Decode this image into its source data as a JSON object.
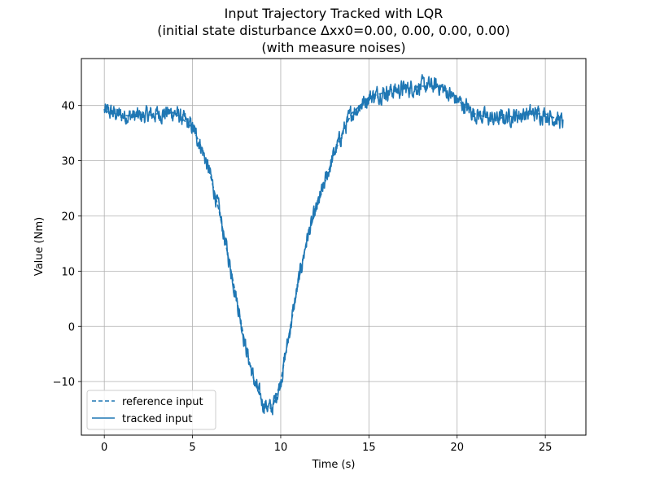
{
  "chart_data": {
    "type": "line",
    "title_lines": [
      "Input Trajectory Tracked with LQR",
      "(initial state disturbance Δxx0=0.00, 0.00, 0.00, 0.00)",
      "(with measure noises)"
    ],
    "xlabel": "Time (s)",
    "ylabel": "Value (Nm)",
    "xlim": [
      -1.3,
      27.3
    ],
    "ylim": [
      -19.7,
      48.5
    ],
    "x_ticks": [
      0,
      5,
      10,
      15,
      20,
      25
    ],
    "x_tick_labels": [
      "0",
      "5",
      "10",
      "15",
      "20",
      "25"
    ],
    "y_ticks": [
      -10,
      0,
      10,
      20,
      30,
      40
    ],
    "y_tick_labels": [
      "−10",
      "0",
      "10",
      "20",
      "30",
      "40"
    ],
    "grid": true,
    "legend": {
      "placement": "lower-left"
    },
    "series": [
      {
        "name": "reference input",
        "style": "dashed",
        "color": "#1f77b4",
        "x": [
          0,
          1,
          2,
          3,
          4,
          5,
          5.5,
          6,
          6.5,
          7,
          7.5,
          8,
          8.5,
          9,
          9.5,
          10,
          10.5,
          11,
          11.5,
          12,
          12.5,
          13,
          13.5,
          14,
          15,
          16,
          17,
          18,
          19,
          20,
          21,
          22,
          23,
          24,
          25,
          26
        ],
        "y": [
          39,
          38.2,
          38,
          38.5,
          38.7,
          36,
          32.5,
          27.5,
          21,
          13,
          5,
          -3.5,
          -10,
          -14,
          -15,
          -10,
          -1,
          8,
          16,
          21,
          26,
          31,
          35,
          38.5,
          41.5,
          42.5,
          43,
          43.5,
          43.5,
          41,
          38.5,
          37.5,
          38,
          38.5,
          38.5,
          37
        ]
      },
      {
        "name": "tracked input",
        "style": "solid",
        "color": "#1f77b4",
        "x": [
          0,
          1,
          2,
          3,
          4,
          5,
          5.5,
          6,
          6.5,
          7,
          7.5,
          8,
          8.5,
          9,
          9.5,
          10,
          10.5,
          11,
          11.5,
          12,
          12.5,
          13,
          13.5,
          14,
          15,
          16,
          17,
          18,
          19,
          20,
          21,
          22,
          23,
          24,
          25,
          26
        ],
        "y": [
          39,
          38.2,
          38,
          38.5,
          38.7,
          36,
          32.5,
          27.5,
          21,
          13,
          5,
          -3.5,
          -10,
          -14,
          -15,
          -10,
          -1,
          8,
          16,
          21,
          26,
          31,
          35,
          38.5,
          41.5,
          42.5,
          43,
          43.5,
          43.5,
          41,
          38.5,
          37.5,
          38,
          38.5,
          38.5,
          37
        ],
        "noise_amplitude": 1.2
      }
    ]
  },
  "colors": {
    "line": "#1f77b4",
    "grid": "#b0b0b0",
    "axis": "#000000"
  }
}
